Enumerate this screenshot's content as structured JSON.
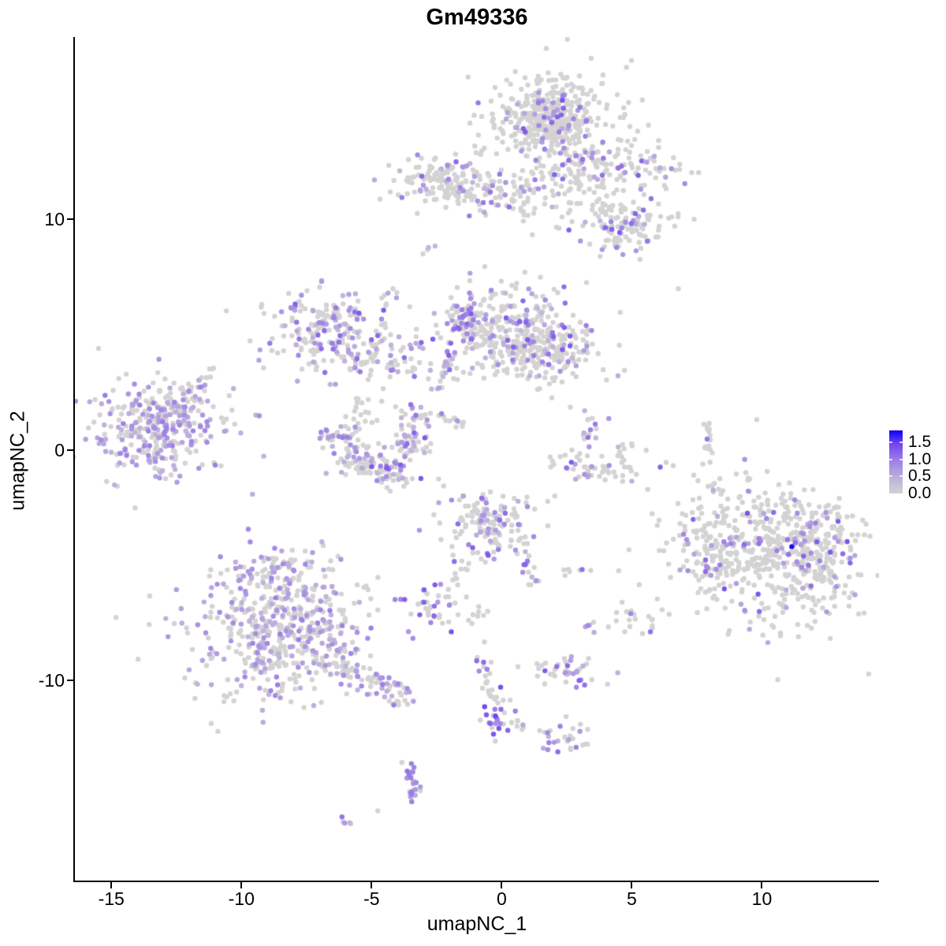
{
  "title": "Gm49336",
  "axes": {
    "x_label": "umapNC_1",
    "y_label": "umapNC_2",
    "x_ticks": [
      -15,
      -10,
      -5,
      0,
      5,
      10
    ],
    "y_ticks": [
      10,
      0,
      -10
    ]
  },
  "legend": {
    "labels": [
      "1.5",
      "1.0",
      "0.5",
      "0.0"
    ],
    "values": [
      1.5,
      1.0,
      0.5,
      0.0
    ]
  },
  "chart_data": {
    "type": "scatter",
    "title": "Gm49336",
    "xlabel": "umapNC_1",
    "ylabel": "umapNC_2",
    "xlim": [
      -16.4,
      14.5
    ],
    "ylim": [
      -18.7,
      17.9
    ],
    "grid": false,
    "legend_position": "right",
    "point_radius_px": 3.2,
    "seed": 7,
    "color_scale": {
      "min": 0.0,
      "max": 1.86,
      "low": "#D3D3D3",
      "high": "#0000FF",
      "stops": [
        [
          0.0,
          211,
          211,
          211
        ],
        [
          0.27,
          187,
          172,
          221
        ],
        [
          0.54,
          155,
          125,
          230
        ],
        [
          0.8,
          110,
          65,
          240
        ],
        [
          1.0,
          10,
          0,
          250
        ]
      ]
    },
    "clusters": [
      {
        "id": "top-main",
        "t": "b",
        "c": [
          1.82,
          14.44
        ],
        "s": [
          0.95,
          0.85
        ],
        "n": 330,
        "f": 0.13,
        "vr": [
          0.5,
          1.3
        ]
      },
      {
        "id": "top-main-skirt",
        "t": "b",
        "c": [
          1.9,
          14.2
        ],
        "s": [
          1.45,
          1.25
        ],
        "n": 110,
        "f": 0.1,
        "vr": [
          0.5,
          1.3
        ]
      },
      {
        "id": "top-main-lobe",
        "t": "b",
        "c": [
          3.12,
          12.5
        ],
        "s": [
          0.9,
          0.6
        ],
        "n": 85,
        "f": 0.12,
        "vr": [
          0.5,
          1.3
        ]
      },
      {
        "id": "top-right-spray",
        "t": "b",
        "c": [
          4.94,
          12.15
        ],
        "s": [
          1.1,
          0.65
        ],
        "n": 80,
        "f": 0.15,
        "vr": [
          0.5,
          1.3
        ]
      },
      {
        "id": "top-mid-chain",
        "t": "b",
        "c": [
          0.55,
          10.8
        ],
        "s": [
          0.85,
          0.45
        ],
        "n": 40,
        "f": 0.15
      },
      {
        "id": "top-below-sparse",
        "t": "b",
        "c": [
          2.82,
          10.44
        ],
        "s": [
          1.0,
          0.8
        ],
        "n": 30,
        "f": 0.1
      },
      {
        "id": "right-mid-a",
        "t": "b",
        "c": [
          4.18,
          9.42
        ],
        "s": [
          0.55,
          0.5
        ],
        "n": 45,
        "f": 0.3,
        "vr": [
          0.7,
          1.4
        ]
      },
      {
        "id": "right-mid-b",
        "t": "b",
        "c": [
          5.39,
          9.76
        ],
        "s": [
          0.65,
          0.5
        ],
        "n": 55,
        "f": 0.2
      },
      {
        "id": "right-mid-c",
        "t": "b",
        "c": [
          4.33,
          10.68
        ],
        "s": [
          0.6,
          0.4
        ],
        "n": 22,
        "f": 0.05
      },
      {
        "id": "topleft-band",
        "t": "b",
        "c": [
          -2.18,
          11.57
        ],
        "s": [
          1.0,
          0.55
        ],
        "n": 150,
        "f": 0.2
      },
      {
        "id": "topleft-chain",
        "t": "b",
        "c": [
          -0.21,
          11.3
        ],
        "s": [
          0.75,
          0.25
        ],
        "n": 30,
        "f": 0.35
      },
      {
        "id": "pair-left",
        "t": "b",
        "c": [
          -2.73,
          8.7
        ],
        "s": [
          0.25,
          0.2
        ],
        "n": 4,
        "f": 0.3
      },
      {
        "id": "midleft",
        "t": "b",
        "c": [
          -6.94,
          5.32
        ],
        "s": [
          1.05,
          0.85
        ],
        "n": 170,
        "f": 0.35
      },
      {
        "id": "midleft-arc",
        "t": "b",
        "c": [
          -4.7,
          3.91
        ],
        "s": [
          1.0,
          0.4
        ],
        "n": 65,
        "f": 0.3
      },
      {
        "id": "midleft-stream",
        "t": "l",
        "p": [
          [
            -4.24,
            7.09
          ],
          [
            -4.97,
            3.44
          ]
        ],
        "n": 18,
        "f": 0.3,
        "j": 0.12
      },
      {
        "id": "center-main",
        "t": "b",
        "c": [
          0.09,
          5.15
        ],
        "s": [
          1.3,
          0.95
        ],
        "n": 300,
        "f": 0.2
      },
      {
        "id": "center-right-lobe",
        "t": "b",
        "c": [
          1.91,
          4.29
        ],
        "s": [
          1.0,
          0.7
        ],
        "n": 160,
        "f": 0.2
      },
      {
        "id": "center-left-edge",
        "t": "b",
        "c": [
          -1.33,
          5.66
        ],
        "s": [
          0.35,
          0.6
        ],
        "n": 45,
        "f": 0.55
      },
      {
        "id": "center-stream",
        "t": "l",
        "p": [
          [
            -1.88,
            4.46
          ],
          [
            -2.45,
            2.34
          ]
        ],
        "n": 22,
        "f": 0.5,
        "j": 0.12
      },
      {
        "id": "center-stream2",
        "t": "l",
        "p": [
          [
            -2.39,
            1.62
          ],
          [
            -1.06,
            0.7
          ]
        ],
        "n": 12,
        "f": 0.1,
        "j": 0.1
      },
      {
        "id": "farleft",
        "t": "b",
        "c": [
          -13.36,
          1.04
        ],
        "s": [
          1.2,
          1.0
        ],
        "n": 280,
        "f": 0.55,
        "vr": [
          0.4,
          1.0
        ]
      },
      {
        "id": "farleft-skirt",
        "t": "b",
        "c": [
          -13.3,
          0.9
        ],
        "s": [
          1.7,
          1.35
        ],
        "n": 60,
        "f": 0.3,
        "vr": [
          0.4,
          1.0
        ]
      },
      {
        "id": "farleft-arm",
        "t": "l",
        "p": [
          [
            -12.3,
            2.2
          ],
          [
            -11.3,
            3.2
          ]
        ],
        "n": 22,
        "f": 0.45,
        "vr": [
          0.4,
          1.0
        ],
        "j": 0.2
      },
      {
        "id": "ucl-a",
        "t": "b",
        "c": [
          -6.21,
          0.5
        ],
        "s": [
          0.45,
          0.35
        ],
        "n": 40,
        "f": 0.3
      },
      {
        "id": "ucl-b",
        "t": "b",
        "c": [
          -5.42,
          -0.56
        ],
        "s": [
          0.45,
          0.35
        ],
        "n": 50,
        "f": 0.3
      },
      {
        "id": "ucl-c",
        "t": "b",
        "c": [
          -4.39,
          -0.94
        ],
        "s": [
          0.5,
          0.35
        ],
        "n": 55,
        "f": 0.3
      },
      {
        "id": "ucl-d",
        "t": "b",
        "c": [
          -3.55,
          0.29
        ],
        "s": [
          0.4,
          0.4
        ],
        "n": 40,
        "f": 0.35
      },
      {
        "id": "ucl-e",
        "t": "b",
        "c": [
          -3.27,
          1.32
        ],
        "s": [
          0.3,
          0.35
        ],
        "n": 22,
        "f": 0.3
      },
      {
        "id": "ucl-inner",
        "t": "b",
        "c": [
          -5.06,
          1.66
        ],
        "s": [
          0.7,
          0.45
        ],
        "n": 22,
        "f": 0.08
      },
      {
        "id": "smallu-a",
        "t": "b",
        "c": [
          3.36,
          0.87
        ],
        "s": [
          0.3,
          0.45
        ],
        "n": 16,
        "f": 0.5
      },
      {
        "id": "smallu-b",
        "t": "b",
        "c": [
          2.45,
          -0.53
        ],
        "s": [
          0.45,
          0.3
        ],
        "n": 14,
        "f": 0.1
      },
      {
        "id": "smallu-c",
        "t": "b",
        "c": [
          3.79,
          -0.87
        ],
        "s": [
          0.8,
          0.3
        ],
        "n": 38,
        "f": 0.3
      },
      {
        "id": "smallu-d",
        "t": "b",
        "c": [
          4.61,
          0.02
        ],
        "s": [
          0.2,
          0.35
        ],
        "n": 8,
        "f": 0.1
      },
      {
        "id": "stripe",
        "t": "l",
        "p": [
          [
            7.94,
            1.15
          ],
          [
            7.94,
            -0.63
          ]
        ],
        "n": 16,
        "f": 0.12,
        "j": 0.07
      },
      {
        "id": "right-big",
        "t": "b",
        "c": [
          10.33,
          -4.43
        ],
        "s": [
          2.0,
          1.5
        ],
        "n": 540,
        "f": 0.13,
        "vr": [
          0.5,
          1.4
        ],
        "rot": -20
      },
      {
        "id": "right-big-edge",
        "t": "b",
        "c": [
          12.2,
          -4.1
        ],
        "s": [
          0.7,
          1.0
        ],
        "n": 110,
        "f": 0.16,
        "vr": [
          0.5,
          1.4
        ]
      },
      {
        "id": "right-big-arm",
        "t": "b",
        "c": [
          8.12,
          -4.43
        ],
        "s": [
          0.5,
          0.85
        ],
        "n": 50,
        "f": 0.2,
        "vr": [
          0.5,
          1.4
        ]
      },
      {
        "id": "cbot",
        "t": "b",
        "c": [
          -0.45,
          -3.33
        ],
        "s": [
          0.85,
          0.75
        ],
        "n": 150,
        "f": 0.28
      },
      {
        "id": "cbot-chain",
        "t": "l",
        "p": [
          [
            0.64,
            -4.15
          ],
          [
            1.3,
            -5.79
          ]
        ],
        "n": 18,
        "f": 0.45,
        "j": 0.12
      },
      {
        "id": "cbot-tail",
        "t": "l",
        "p": [
          [
            -1.36,
            -4.84
          ],
          [
            -2.03,
            -6.2
          ]
        ],
        "n": 10,
        "f": 0.05,
        "j": 0.1
      },
      {
        "id": "cbot-bits",
        "t": "b",
        "c": [
          2.88,
          -5.08
        ],
        "s": [
          0.3,
          0.2
        ],
        "n": 7,
        "f": 0.1
      },
      {
        "id": "small-1",
        "t": "b",
        "c": [
          -2.55,
          -6.82
        ],
        "s": [
          0.5,
          0.5
        ],
        "n": 38,
        "f": 0.5,
        "vr": [
          0.7,
          1.4
        ]
      },
      {
        "id": "tiny-gray",
        "t": "b",
        "c": [
          -0.88,
          -7.16
        ],
        "s": [
          0.25,
          0.25
        ],
        "n": 8,
        "f": 0.05
      },
      {
        "id": "pair-2",
        "t": "b",
        "c": [
          3.42,
          -7.64
        ],
        "s": [
          0.18,
          0.15
        ],
        "n": 5,
        "f": 0.5
      },
      {
        "id": "small-2",
        "t": "b",
        "c": [
          5.12,
          -7.33
        ],
        "s": [
          0.5,
          0.35
        ],
        "n": 22,
        "f": 0.15
      },
      {
        "id": "botleft",
        "t": "b",
        "c": [
          -8.45,
          -7.78
        ],
        "s": [
          1.5,
          1.4
        ],
        "n": 470,
        "f": 0.42,
        "vr": [
          0.4,
          1.0
        ]
      },
      {
        "id": "botleft-skirt",
        "t": "b",
        "c": [
          -9.2,
          -8.4
        ],
        "s": [
          1.95,
          1.6
        ],
        "n": 70,
        "f": 0.3,
        "vr": [
          0.4,
          1.0
        ]
      },
      {
        "id": "botleft-top",
        "t": "b",
        "c": [
          -8.55,
          -5.28
        ],
        "s": [
          0.8,
          0.45
        ],
        "n": 50,
        "f": 0.4,
        "vr": [
          0.4,
          1.0
        ]
      },
      {
        "id": "botleft-tail",
        "t": "l",
        "p": [
          [
            -6.21,
            -9.38
          ],
          [
            -3.61,
            -10.85
          ]
        ],
        "n": 70,
        "f": 0.35,
        "vr": [
          0.4,
          1.0
        ],
        "j": 0.3
      },
      {
        "id": "elong",
        "t": "b",
        "c": [
          2.45,
          -9.52
        ],
        "s": [
          0.85,
          0.35
        ],
        "n": 42,
        "f": 0.45
      },
      {
        "id": "knot-top",
        "t": "b",
        "c": [
          -0.82,
          -9.32
        ],
        "s": [
          0.3,
          0.3
        ],
        "n": 10,
        "f": 0.6,
        "vr": [
          0.8,
          1.5
        ]
      },
      {
        "id": "knot-line",
        "t": "l",
        "p": [
          [
            -0.73,
            -9.73
          ],
          [
            -0.21,
            -11.09
          ]
        ],
        "n": 10,
        "f": 0.15,
        "j": 0.08
      },
      {
        "id": "knot",
        "t": "b",
        "c": [
          -0.06,
          -11.67
        ],
        "s": [
          0.28,
          0.55
        ],
        "n": 26,
        "f": 0.5,
        "vr": [
          0.8,
          1.5
        ]
      },
      {
        "id": "knot-side",
        "t": "l",
        "p": [
          [
            0.33,
            -11.54
          ],
          [
            0.91,
            -12.12
          ]
        ],
        "n": 7,
        "f": 0.1,
        "j": 0.08
      },
      {
        "id": "bot-small",
        "t": "b",
        "c": [
          2.27,
          -12.53
        ],
        "s": [
          0.55,
          0.4
        ],
        "n": 28,
        "f": 0.35
      },
      {
        "id": "bot-stream",
        "t": "l",
        "p": [
          [
            -3.61,
            -13.52
          ],
          [
            -3.3,
            -14.9
          ],
          [
            -3.45,
            -15.35
          ]
        ],
        "n": 28,
        "f": 0.65,
        "vr": [
          0.5,
          1.2
        ],
        "j": 0.12
      },
      {
        "id": "bot-tail",
        "t": "l",
        "p": [
          [
            -6.15,
            -15.98
          ],
          [
            -5.79,
            -16.26
          ]
        ],
        "n": 5,
        "f": 0.5,
        "j": 0.08
      }
    ],
    "singles": [
      {
        "x": -10.58,
        "y": 6.03,
        "v": 0
      },
      {
        "x": 6.79,
        "y": 6.99,
        "v": 0
      },
      {
        "x": -0.82,
        "y": -11.71,
        "v": 0
      },
      {
        "x": -4.76,
        "y": -15.64,
        "v": 0
      },
      {
        "x": 11.15,
        "y": -4.19,
        "v": 1.8
      },
      {
        "x": 2.33,
        "y": 15.16,
        "v": 1.35
      }
    ]
  }
}
